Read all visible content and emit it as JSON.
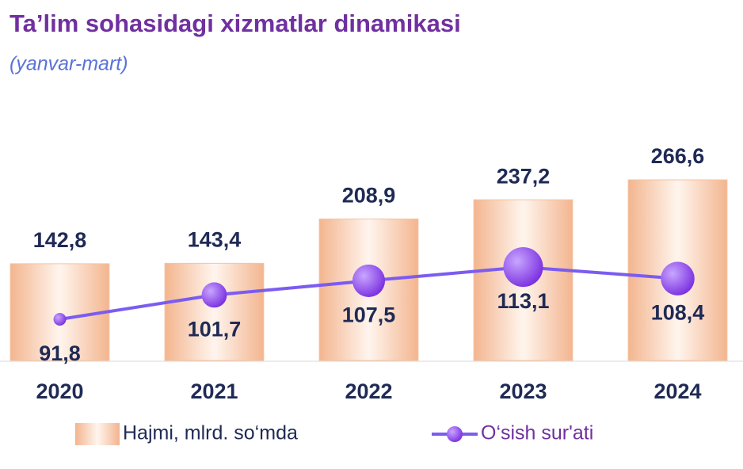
{
  "chart_data": {
    "type": "bar-line",
    "title": "Ta’lim sohasidagi xizmatlar dinamikasi",
    "subtitle": "(yanvar-mart)",
    "categories": [
      "2020",
      "2021",
      "2022",
      "2023",
      "2024"
    ],
    "series": [
      {
        "name": "Hajmi, mlrd. so‘mda",
        "type": "bar",
        "color": "#f6c3a0",
        "values": [
          142.8,
          143.4,
          208.9,
          237.2,
          266.6
        ],
        "value_labels": [
          "142,8",
          "143,4",
          "208,9",
          "237,2",
          "266,6"
        ]
      },
      {
        "name": "O‘sish sur'ati",
        "type": "line",
        "axis": "y2",
        "color": "#7b5cf0",
        "values": [
          91.8,
          101.7,
          107.5,
          113.1,
          108.4
        ],
        "value_labels": [
          "91,8",
          "101,7",
          "107,5",
          "113,1",
          "108,4"
        ]
      }
    ],
    "ylim": [
      0,
      380
    ],
    "y2lim": [
      75,
      180
    ],
    "legend": "bottom"
  }
}
